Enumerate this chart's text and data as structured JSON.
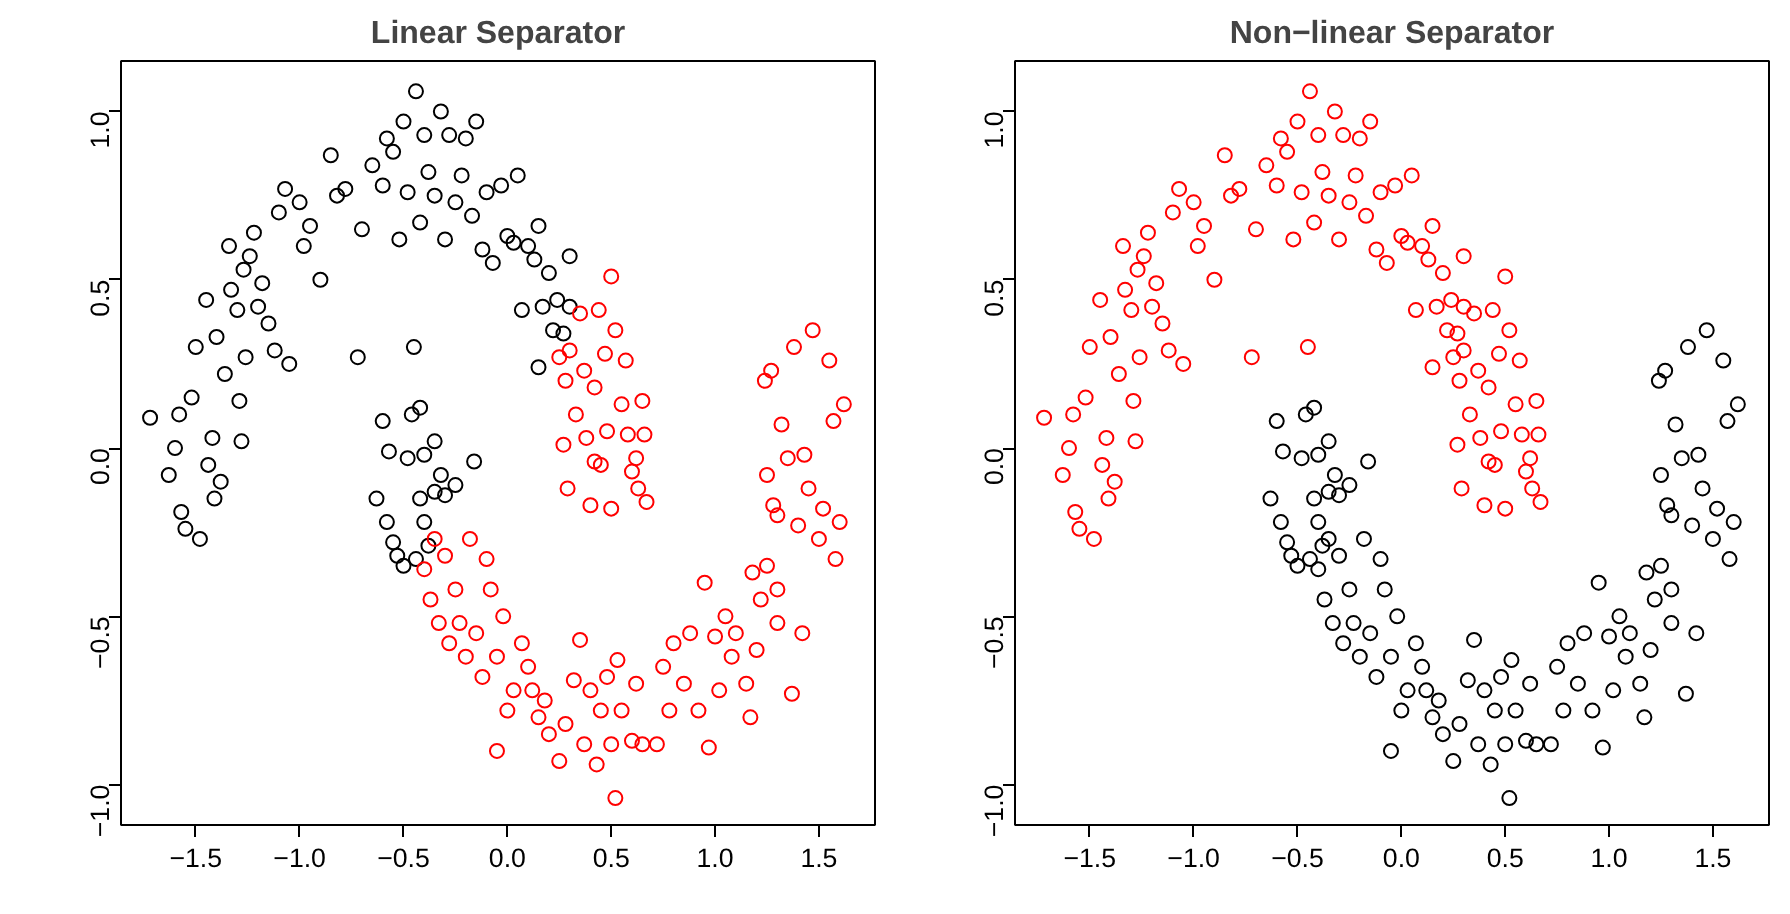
{
  "chart_data": [
    {
      "type": "scatter",
      "title": "Linear Separator",
      "marker": "circle",
      "grid": false,
      "xlim": [
        -1.86,
        1.77
      ],
      "ylim": [
        -1.12,
        1.15
      ],
      "xticks": [
        {
          "value": -1.5,
          "label": "−1.5"
        },
        {
          "value": -1.0,
          "label": "−1.0"
        },
        {
          "value": -0.5,
          "label": "−0.5"
        },
        {
          "value": 0.0,
          "label": "0.0"
        },
        {
          "value": 0.5,
          "label": "0.5"
        },
        {
          "value": 1.0,
          "label": "1.0"
        },
        {
          "value": 1.5,
          "label": "1.5"
        }
      ],
      "yticks": [
        {
          "value": -1.0,
          "label": "−1.0"
        },
        {
          "value": -0.5,
          "label": "−0.5"
        },
        {
          "value": 0.0,
          "label": "0.0"
        },
        {
          "value": 0.5,
          "label": "0.5"
        },
        {
          "value": 1.0,
          "label": "1.0"
        }
      ],
      "series": [
        {
          "color": "#000000",
          "x": [
            -1.72,
            -1.63,
            -1.6,
            -1.58,
            -1.57,
            -1.55,
            -1.52,
            -1.5,
            -1.48,
            -1.45,
            -1.44,
            -1.42,
            -1.41,
            -1.4,
            -1.38,
            -1.36,
            -1.34,
            -1.33,
            -1.3,
            -1.29,
            -1.28,
            -1.27,
            -1.26,
            -1.24,
            -1.22,
            -1.2,
            -1.18,
            -1.15,
            -1.12,
            -1.1,
            -1.07,
            -1.05,
            -1.0,
            -0.98,
            -0.95,
            -0.9,
            -0.85,
            -0.82,
            -0.78,
            -0.72,
            -0.7,
            -0.65,
            -0.6,
            -0.58,
            -0.55,
            -0.52,
            -0.5,
            -0.48,
            -0.45,
            -0.44,
            -0.42,
            -0.4,
            -0.38,
            -0.35,
            -0.32,
            -0.3,
            -0.28,
            -0.25,
            -0.22,
            -0.2,
            -0.17,
            -0.15,
            -0.12,
            -0.1,
            -0.07,
            -0.03,
            0.0,
            0.03,
            0.05,
            0.07,
            0.1,
            0.13,
            0.15,
            0.15,
            0.17,
            0.2,
            0.22,
            0.24,
            0.27,
            0.3,
            0.3,
            -0.63,
            -0.6,
            -0.58,
            -0.57,
            -0.55,
            -0.53,
            -0.5,
            -0.48,
            -0.46,
            -0.44,
            -0.42,
            -0.42,
            -0.4,
            -0.4,
            -0.38,
            -0.35,
            -0.35,
            -0.32,
            -0.3,
            -0.25,
            -0.16
          ],
          "values": [
            0.09,
            -0.08,
            0.0,
            0.1,
            -0.19,
            -0.24,
            0.15,
            0.3,
            -0.27,
            0.44,
            -0.05,
            0.03,
            -0.15,
            0.33,
            -0.1,
            0.22,
            0.6,
            0.47,
            0.41,
            0.14,
            0.02,
            0.53,
            0.27,
            0.57,
            0.64,
            0.42,
            0.49,
            0.37,
            0.29,
            0.7,
            0.77,
            0.25,
            0.73,
            0.6,
            0.66,
            0.5,
            0.87,
            0.75,
            0.77,
            0.27,
            0.65,
            0.84,
            0.78,
            0.92,
            0.88,
            0.62,
            0.97,
            0.76,
            0.3,
            1.06,
            0.67,
            0.93,
            0.82,
            0.75,
            1.0,
            0.62,
            0.93,
            0.73,
            0.81,
            0.92,
            0.69,
            0.97,
            0.59,
            0.76,
            0.55,
            0.78,
            0.63,
            0.61,
            0.81,
            0.41,
            0.6,
            0.56,
            0.66,
            0.24,
            0.42,
            0.52,
            0.35,
            0.44,
            0.34,
            0.57,
            0.42,
            -0.15,
            0.08,
            -0.22,
            -0.01,
            -0.28,
            -0.32,
            -0.35,
            -0.03,
            0.1,
            -0.33,
            0.12,
            -0.15,
            -0.02,
            -0.22,
            -0.29,
            -0.13,
            0.02,
            -0.08,
            -0.14,
            -0.11,
            -0.04
          ]
        },
        {
          "color": "#ff0000",
          "x": [
            0.25,
            0.28,
            0.3,
            0.33,
            0.35,
            0.37,
            0.38,
            0.4,
            0.42,
            0.44,
            0.45,
            0.47,
            0.48,
            0.5,
            0.5,
            0.52,
            0.55,
            0.57,
            0.58,
            0.6,
            0.62,
            0.63,
            0.65,
            0.66,
            0.67,
            0.27,
            0.29,
            0.42,
            -0.4,
            -0.37,
            -0.35,
            -0.33,
            -0.3,
            -0.28,
            -0.25,
            -0.23,
            -0.2,
            -0.18,
            -0.15,
            -0.12,
            -0.1,
            -0.08,
            -0.05,
            -0.05,
            -0.02,
            0.0,
            0.03,
            0.07,
            0.1,
            0.12,
            0.15,
            0.18,
            0.2,
            0.25,
            0.28,
            0.32,
            0.35,
            0.37,
            0.4,
            0.43,
            0.45,
            0.48,
            0.5,
            0.52,
            0.53,
            0.55,
            0.6,
            0.62,
            0.65,
            0.72,
            0.75,
            0.78,
            0.8,
            0.85,
            0.88,
            0.92,
            0.95,
            0.97,
            1.0,
            1.02,
            1.05,
            1.08,
            1.1,
            1.15,
            1.17,
            1.18,
            1.2,
            1.22,
            1.25,
            1.28,
            1.3,
            1.3,
            1.32,
            1.35,
            1.37,
            1.38,
            1.4,
            1.42,
            1.43,
            1.45,
            1.47,
            1.5,
            1.52,
            1.55,
            1.57,
            1.58,
            1.6,
            1.62,
            1.24,
            1.25,
            1.3,
            1.27
          ],
          "values": [
            0.27,
            0.2,
            0.29,
            0.1,
            0.4,
            0.23,
            0.03,
            -0.17,
            0.18,
            0.41,
            -0.05,
            0.28,
            0.05,
            -0.18,
            0.51,
            0.35,
            0.13,
            0.26,
            0.04,
            -0.07,
            -0.03,
            -0.12,
            0.14,
            0.04,
            -0.16,
            0.01,
            -0.12,
            -0.04,
            -0.36,
            -0.45,
            -0.27,
            -0.52,
            -0.32,
            -0.58,
            -0.42,
            -0.52,
            -0.62,
            -0.27,
            -0.55,
            -0.68,
            -0.33,
            -0.42,
            -0.62,
            -0.9,
            -0.5,
            -0.78,
            -0.72,
            -0.58,
            -0.65,
            -0.72,
            -0.8,
            -0.75,
            -0.85,
            -0.93,
            -0.82,
            -0.69,
            -0.57,
            -0.88,
            -0.72,
            -0.94,
            -0.78,
            -0.68,
            -0.88,
            -1.04,
            -0.63,
            -0.78,
            -0.87,
            -0.7,
            -0.88,
            -0.88,
            -0.65,
            -0.78,
            -0.58,
            -0.7,
            -0.55,
            -0.78,
            -0.4,
            -0.89,
            -0.56,
            -0.72,
            -0.5,
            -0.62,
            -0.55,
            -0.7,
            -0.8,
            -0.37,
            -0.6,
            -0.45,
            -0.35,
            -0.17,
            -0.52,
            -0.42,
            0.07,
            -0.03,
            -0.73,
            0.3,
            -0.23,
            -0.55,
            -0.02,
            -0.12,
            0.35,
            -0.27,
            -0.18,
            0.26,
            0.08,
            -0.33,
            -0.22,
            0.13,
            0.2,
            -0.08,
            -0.2,
            0.23
          ]
        }
      ]
    },
    {
      "type": "scatter",
      "title": "Non−linear Separator",
      "marker": "circle",
      "grid": false,
      "xlim": [
        -1.86,
        1.77
      ],
      "ylim": [
        -1.12,
        1.15
      ],
      "xticks": [
        {
          "value": -1.5,
          "label": "−1.5"
        },
        {
          "value": -1.0,
          "label": "−1.0"
        },
        {
          "value": -0.5,
          "label": "−0.5"
        },
        {
          "value": 0.0,
          "label": "0.0"
        },
        {
          "value": 0.5,
          "label": "0.5"
        },
        {
          "value": 1.0,
          "label": "1.0"
        },
        {
          "value": 1.5,
          "label": "1.5"
        }
      ],
      "yticks": [
        {
          "value": -1.0,
          "label": "−1.0"
        },
        {
          "value": -0.5,
          "label": "−0.5"
        },
        {
          "value": 0.0,
          "label": "0.0"
        },
        {
          "value": 0.5,
          "label": "0.5"
        },
        {
          "value": 1.0,
          "label": "1.0"
        }
      ],
      "series": [
        {
          "color": "#ff0000",
          "x": [
            -1.72,
            -1.63,
            -1.6,
            -1.58,
            -1.57,
            -1.55,
            -1.52,
            -1.5,
            -1.48,
            -1.45,
            -1.44,
            -1.42,
            -1.41,
            -1.4,
            -1.38,
            -1.36,
            -1.34,
            -1.33,
            -1.3,
            -1.29,
            -1.28,
            -1.27,
            -1.26,
            -1.24,
            -1.22,
            -1.2,
            -1.18,
            -1.15,
            -1.12,
            -1.1,
            -1.07,
            -1.05,
            -1.0,
            -0.98,
            -0.95,
            -0.9,
            -0.85,
            -0.82,
            -0.78,
            -0.72,
            -0.7,
            -0.65,
            -0.6,
            -0.58,
            -0.55,
            -0.52,
            -0.5,
            -0.48,
            -0.45,
            -0.44,
            -0.42,
            -0.4,
            -0.38,
            -0.35,
            -0.32,
            -0.3,
            -0.28,
            -0.25,
            -0.22,
            -0.2,
            -0.17,
            -0.15,
            -0.12,
            -0.1,
            -0.07,
            -0.03,
            0.0,
            0.03,
            0.05,
            0.07,
            0.1,
            0.13,
            0.15,
            0.15,
            0.17,
            0.2,
            0.22,
            0.24,
            0.27,
            0.3,
            0.3,
            0.25,
            0.28,
            0.3,
            0.33,
            0.35,
            0.37,
            0.38,
            0.4,
            0.42,
            0.44,
            0.45,
            0.47,
            0.48,
            0.5,
            0.5,
            0.52,
            0.55,
            0.57,
            0.58,
            0.6,
            0.62,
            0.63,
            0.65,
            0.66,
            0.67,
            0.27,
            0.29,
            0.42
          ],
          "values": [
            0.09,
            -0.08,
            0.0,
            0.1,
            -0.19,
            -0.24,
            0.15,
            0.3,
            -0.27,
            0.44,
            -0.05,
            0.03,
            -0.15,
            0.33,
            -0.1,
            0.22,
            0.6,
            0.47,
            0.41,
            0.14,
            0.02,
            0.53,
            0.27,
            0.57,
            0.64,
            0.42,
            0.49,
            0.37,
            0.29,
            0.7,
            0.77,
            0.25,
            0.73,
            0.6,
            0.66,
            0.5,
            0.87,
            0.75,
            0.77,
            0.27,
            0.65,
            0.84,
            0.78,
            0.92,
            0.88,
            0.62,
            0.97,
            0.76,
            0.3,
            1.06,
            0.67,
            0.93,
            0.82,
            0.75,
            1.0,
            0.62,
            0.93,
            0.73,
            0.81,
            0.92,
            0.69,
            0.97,
            0.59,
            0.76,
            0.55,
            0.78,
            0.63,
            0.61,
            0.81,
            0.41,
            0.6,
            0.56,
            0.66,
            0.24,
            0.42,
            0.52,
            0.35,
            0.44,
            0.34,
            0.57,
            0.42,
            0.27,
            0.2,
            0.29,
            0.1,
            0.4,
            0.23,
            0.03,
            -0.17,
            0.18,
            0.41,
            -0.05,
            0.28,
            0.05,
            -0.18,
            0.51,
            0.35,
            0.13,
            0.26,
            0.04,
            -0.07,
            -0.03,
            -0.12,
            0.14,
            0.04,
            -0.16,
            0.01,
            -0.12,
            -0.04
          ]
        },
        {
          "color": "#000000",
          "x": [
            -0.63,
            -0.6,
            -0.58,
            -0.57,
            -0.55,
            -0.53,
            -0.5,
            -0.48,
            -0.46,
            -0.44,
            -0.42,
            -0.42,
            -0.4,
            -0.4,
            -0.38,
            -0.35,
            -0.35,
            -0.32,
            -0.3,
            -0.25,
            -0.16,
            -0.4,
            -0.37,
            -0.35,
            -0.33,
            -0.3,
            -0.28,
            -0.25,
            -0.23,
            -0.2,
            -0.18,
            -0.15,
            -0.12,
            -0.1,
            -0.08,
            -0.05,
            -0.05,
            -0.02,
            0.0,
            0.03,
            0.07,
            0.1,
            0.12,
            0.15,
            0.18,
            0.2,
            0.25,
            0.28,
            0.32,
            0.35,
            0.37,
            0.4,
            0.43,
            0.45,
            0.48,
            0.5,
            0.52,
            0.53,
            0.55,
            0.6,
            0.62,
            0.65,
            0.72,
            0.75,
            0.78,
            0.8,
            0.85,
            0.88,
            0.92,
            0.95,
            0.97,
            1.0,
            1.02,
            1.05,
            1.08,
            1.1,
            1.15,
            1.17,
            1.18,
            1.2,
            1.22,
            1.25,
            1.28,
            1.3,
            1.3,
            1.32,
            1.35,
            1.37,
            1.38,
            1.4,
            1.42,
            1.43,
            1.45,
            1.47,
            1.5,
            1.52,
            1.55,
            1.57,
            1.58,
            1.6,
            1.62,
            1.24,
            1.25,
            1.3,
            1.27
          ],
          "values": [
            -0.15,
            0.08,
            -0.22,
            -0.01,
            -0.28,
            -0.32,
            -0.35,
            -0.03,
            0.1,
            -0.33,
            0.12,
            -0.15,
            -0.02,
            -0.22,
            -0.29,
            -0.13,
            0.02,
            -0.08,
            -0.14,
            -0.11,
            -0.04,
            -0.36,
            -0.45,
            -0.27,
            -0.52,
            -0.32,
            -0.58,
            -0.42,
            -0.52,
            -0.62,
            -0.27,
            -0.55,
            -0.68,
            -0.33,
            -0.42,
            -0.62,
            -0.9,
            -0.5,
            -0.78,
            -0.72,
            -0.58,
            -0.65,
            -0.72,
            -0.8,
            -0.75,
            -0.85,
            -0.93,
            -0.82,
            -0.69,
            -0.57,
            -0.88,
            -0.72,
            -0.94,
            -0.78,
            -0.68,
            -0.88,
            -1.04,
            -0.63,
            -0.78,
            -0.87,
            -0.7,
            -0.88,
            -0.88,
            -0.65,
            -0.78,
            -0.58,
            -0.7,
            -0.55,
            -0.78,
            -0.4,
            -0.89,
            -0.56,
            -0.72,
            -0.5,
            -0.62,
            -0.55,
            -0.7,
            -0.8,
            -0.37,
            -0.6,
            -0.45,
            -0.35,
            -0.17,
            -0.52,
            -0.42,
            0.07,
            -0.03,
            -0.73,
            0.3,
            -0.23,
            -0.55,
            -0.02,
            -0.12,
            0.35,
            -0.27,
            -0.18,
            0.26,
            0.08,
            -0.33,
            -0.22,
            0.13,
            0.2,
            -0.08,
            -0.2,
            0.23
          ]
        }
      ]
    }
  ]
}
